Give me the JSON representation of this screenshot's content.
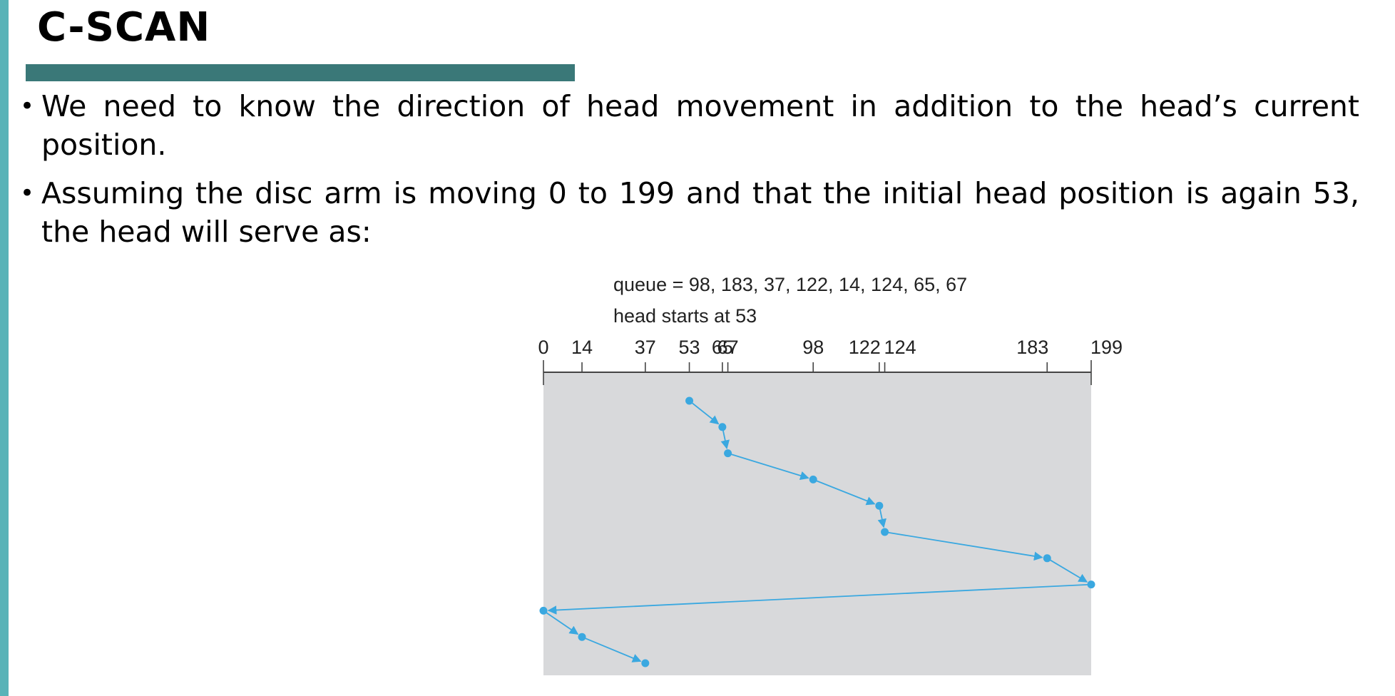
{
  "slide": {
    "title": "C-SCAN",
    "bullets": [
      "We need to know the direction of head movement in addition to the head’s current position.",
      "Assuming the disc arm is moving 0 to 199 and that the initial head position is again 53, the head will serve as:"
    ]
  },
  "diagram": {
    "queue_text": "queue = 98, 183, 37, 122, 14, 124, 65, 67",
    "head_text": "head starts at 53",
    "axis_min": 0,
    "axis_max": 199,
    "ticks": [
      {
        "value": 0,
        "label": "0"
      },
      {
        "value": 14,
        "label": "14"
      },
      {
        "value": 37,
        "label": "37"
      },
      {
        "value": 53,
        "label": "53"
      },
      {
        "value": 65,
        "label": "65"
      },
      {
        "value": 67,
        "label": "67"
      },
      {
        "value": 98,
        "label": "98"
      },
      {
        "value": 122,
        "label": "122"
      },
      {
        "value": 124,
        "label": "124"
      },
      {
        "value": 183,
        "label": "183"
      },
      {
        "value": 199,
        "label": "199"
      }
    ],
    "service_order": [
      53,
      65,
      67,
      98,
      122,
      124,
      183,
      199,
      0,
      14,
      37
    ],
    "colors": {
      "path": "#3aa8e0",
      "panel": "#d8d9db",
      "axis": "#444444"
    }
  }
}
